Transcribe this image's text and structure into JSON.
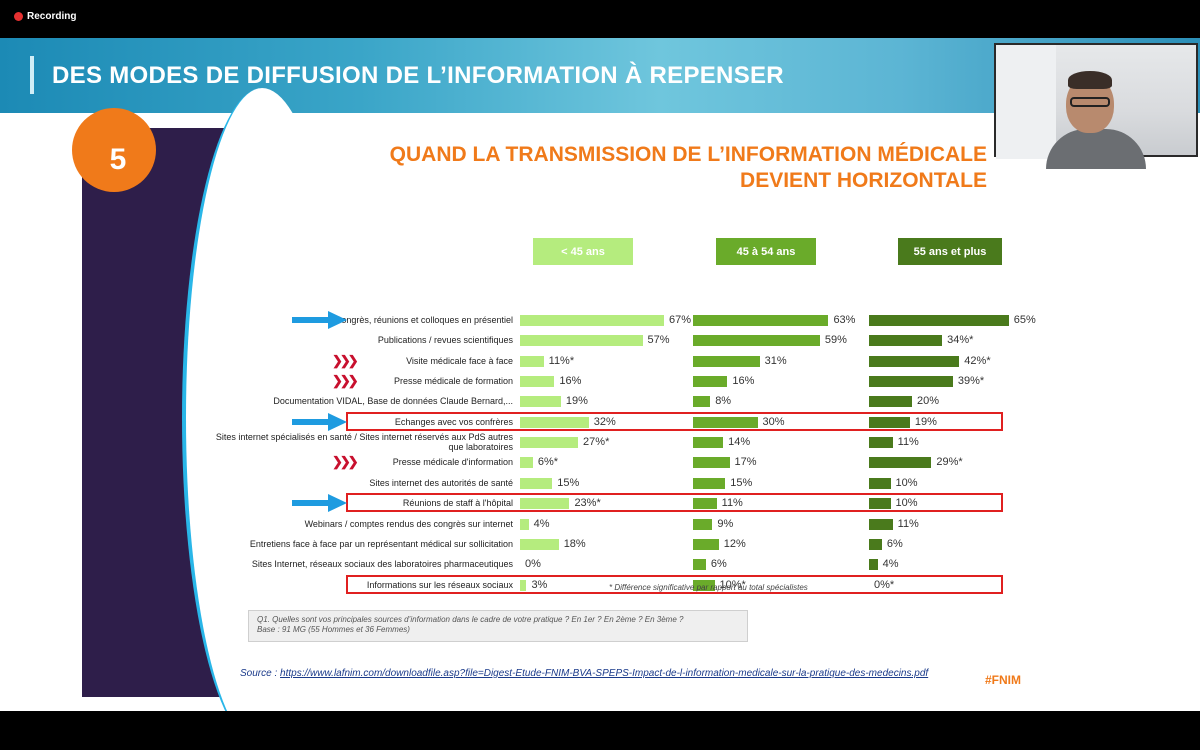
{
  "recording": {
    "label": "Recording"
  },
  "banner": {
    "title": "DES MODES DE DIFFUSION DE L’INFORMATION À REPENSER"
  },
  "slide": {
    "number": "5",
    "title_line1": "QUAND LA TRANSMISSION DE L’INFORMATION MÉDICALE",
    "title_line2": "DEVIENT HORIZONTALE",
    "footnote": "* Différence significative par rapport au total spécialistes",
    "question": "Q1. Quelles sont vos principales sources d’information dans le cadre de votre pratique ? En 1er ? En 2ème ? En 3ème ?",
    "base": "Base : 91 MG (55 Hommes et 36 Femmes)",
    "hashtag": "#FNIM"
  },
  "source": {
    "prefix": "Source : ",
    "url": "https://www.lafnim.com/downloadfile.asp?file=Digest-Etude-FNIM-BVA-SPEPS-Impact-de-l-information-medicale-sur-la-pratique-des-medecins.pdf"
  },
  "colors": {
    "group1": "#b5ec7e",
    "group2": "#6aab2a",
    "group3": "#4a7a1c",
    "orange": "#f07a1a",
    "highlight": "#e02020"
  },
  "chart_data": {
    "type": "bar",
    "orientation": "horizontal",
    "groups": [
      "< 45 ans",
      "45 à 54 ans",
      "55 ans et plus"
    ],
    "categories": [
      "Congrès, réunions et colloques en présentiel",
      "Publications / revues scientifiques",
      "Visite médicale face à face",
      "Presse médicale de formation",
      "Documentation VIDAL, Base de données Claude Bernard,...",
      "Echanges avec vos confrères",
      "Sites internet spécialisés en santé / Sites internet réservés aux PdS autres que laboratoires",
      "Presse médicale d'information",
      "Sites internet des autorités de santé",
      "Réunions de staff à l'hôpital",
      "Webinars / comptes rendus des congrès sur internet",
      "Entretiens face à face par un représentant médical sur sollicitation",
      "Sites Internet, réseaux sociaux des laboratoires pharmaceutiques",
      "Informations sur les réseaux sociaux"
    ],
    "series": [
      {
        "name": "< 45 ans",
        "values": [
          67,
          57,
          11,
          16,
          19,
          32,
          27,
          6,
          15,
          23,
          4,
          18,
          0,
          3
        ],
        "labels": [
          "67%",
          "57%",
          "11%*",
          "16%",
          "19%",
          "32%",
          "27%*",
          "6%*",
          "15%",
          "23%*",
          "4%",
          "18%",
          "0%",
          "3%"
        ]
      },
      {
        "name": "45 à 54 ans",
        "values": [
          63,
          59,
          31,
          16,
          8,
          30,
          14,
          17,
          15,
          11,
          9,
          12,
          6,
          10
        ],
        "labels": [
          "63%",
          "59%",
          "31%",
          "16%",
          "8%",
          "30%",
          "14%",
          "17%",
          "15%",
          "11%",
          "9%",
          "12%",
          "6%",
          "10%*"
        ]
      },
      {
        "name": "55 ans et plus",
        "values": [
          65,
          34,
          42,
          39,
          20,
          19,
          11,
          29,
          10,
          10,
          11,
          6,
          4,
          0
        ],
        "labels": [
          "65%",
          "34%*",
          "42%*",
          "39%*",
          "20%",
          "19%",
          "11%",
          "29%*",
          "10%",
          "10%",
          "11%",
          "6%",
          "4%",
          "0%*"
        ]
      }
    ],
    "highlighted_rows": [
      5,
      9,
      13
    ],
    "blue_arrow_rows": [
      0,
      5,
      9
    ],
    "chevron_rows": [
      2,
      3,
      7
    ]
  }
}
